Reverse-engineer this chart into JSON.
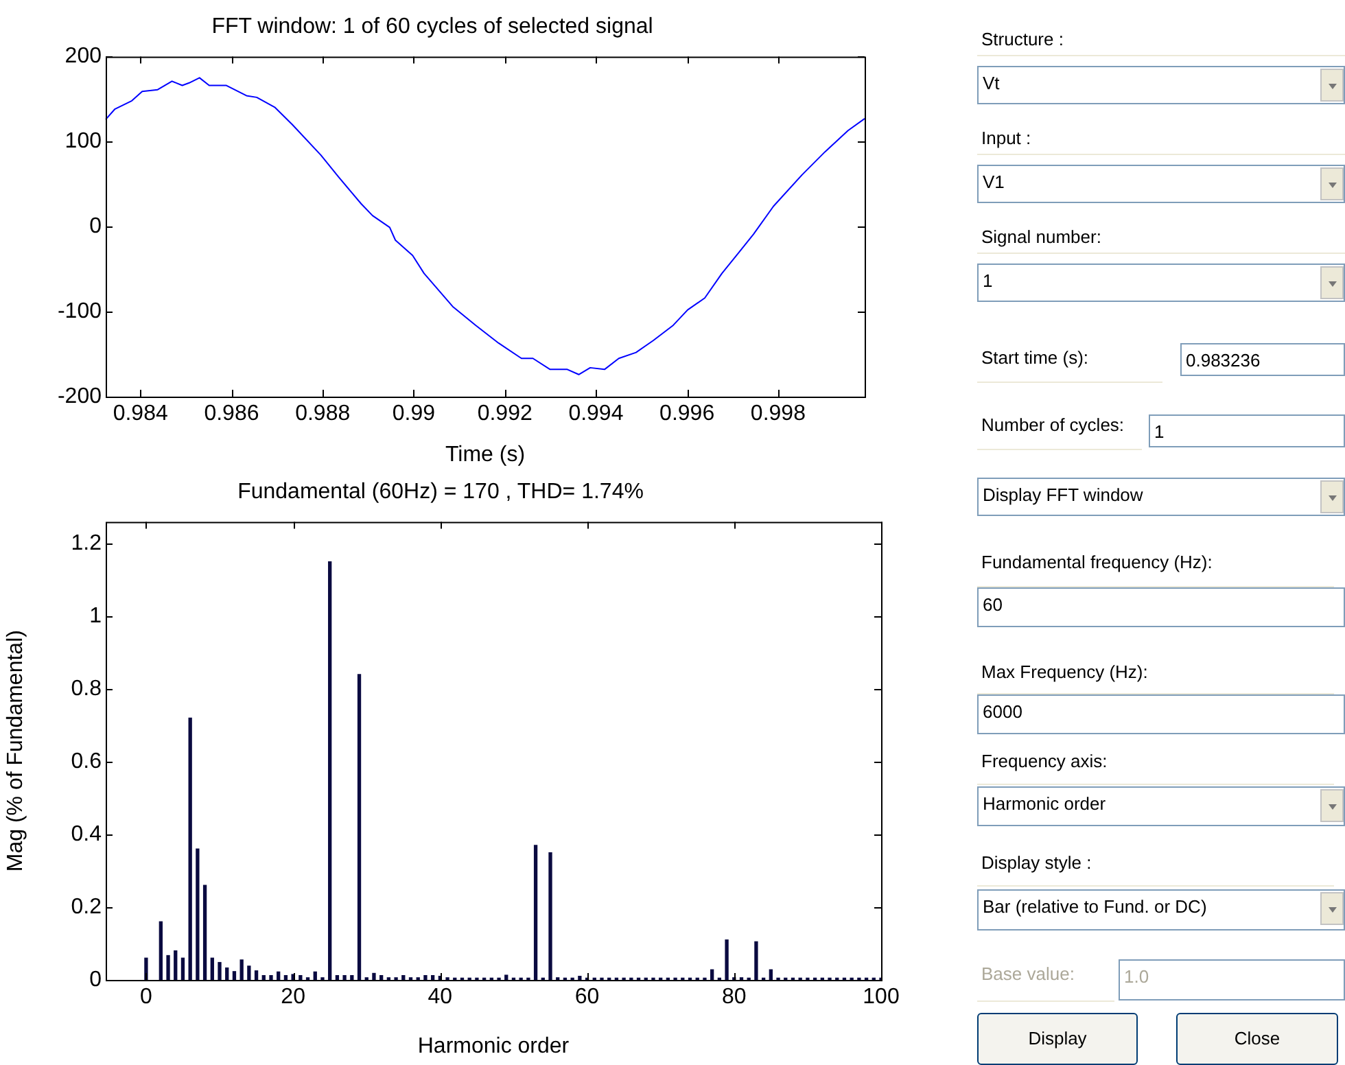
{
  "chart_data": [
    {
      "type": "line",
      "title": "FFT window: 1 of 60 cycles of selected signal",
      "xlabel": "Time (s)",
      "x": [
        0.983236,
        0.983434,
        0.983811,
        0.984038,
        0.984377,
        0.984692,
        0.984918,
        0.985069,
        0.985296,
        0.985509,
        0.985887,
        0.986327,
        0.986553,
        0.986956,
        0.987333,
        0.987962,
        0.98834,
        0.988843,
        0.989094,
        0.989472,
        0.989597,
        0.989975,
        0.990226,
        0.990855,
        0.991358,
        0.991862,
        0.992365,
        0.992616,
        0.992994,
        0.993371,
        0.993623,
        0.993874,
        0.994189,
        0.994503,
        0.994881,
        0.995258,
        0.995698,
        0.996013,
        0.99639,
        0.996767,
        0.997145,
        0.997459,
        0.997899,
        0.998528,
        0.999031,
        0.999535,
        0.9999
      ],
      "series": [
        {
          "color": "#0000ff",
          "values": [
            126,
            138,
            148,
            159,
            161,
            171,
            166,
            169,
            175,
            166,
            166,
            154,
            152,
            140,
            120,
            84,
            59,
            27,
            13,
            -1,
            -16,
            -34,
            -55,
            -94,
            -116,
            -137,
            -155,
            -155,
            -168,
            -168,
            -174,
            -166,
            -168,
            -155,
            -148,
            -134,
            -116,
            -98,
            -84,
            -55,
            -30,
            -9,
            24,
            61,
            88,
            113,
            127
          ]
        }
      ],
      "xlim": [
        0.983236,
        0.9999
      ],
      "xticks": [
        0.984,
        0.986,
        0.988,
        0.99,
        0.992,
        0.994,
        0.996,
        0.998
      ],
      "ylim": [
        -200,
        200
      ],
      "yticks": [
        -200,
        -100,
        0,
        100,
        200
      ],
      "grid": false,
      "legend": false,
      "marker": "none",
      "line_style": "solid"
    },
    {
      "type": "bar",
      "title": "Fundamental (60Hz) = 170 , THD= 1.74%",
      "xlabel": "Harmonic order",
      "ylabel": "Mag (% of Fundamental)",
      "x": [
        0,
        1,
        2,
        3,
        4,
        5,
        6,
        7,
        8,
        9,
        10,
        11,
        12,
        13,
        14,
        15,
        16,
        17,
        18,
        19,
        20,
        21,
        22,
        23,
        24,
        25,
        26,
        27,
        28,
        29,
        30,
        31,
        32,
        33,
        34,
        35,
        36,
        37,
        38,
        39,
        40,
        41,
        42,
        43,
        44,
        45,
        46,
        47,
        48,
        49,
        50,
        51,
        52,
        53,
        54,
        55,
        56,
        57,
        58,
        59,
        60,
        61,
        62,
        63,
        64,
        65,
        66,
        67,
        68,
        69,
        70,
        71,
        72,
        73,
        74,
        75,
        76,
        77,
        78,
        79,
        80,
        81,
        82,
        83,
        84,
        85,
        86,
        87,
        88,
        89,
        90,
        91,
        92,
        93,
        94,
        95,
        96,
        97,
        98,
        99,
        100
      ],
      "values": [
        0.06,
        null,
        0.16,
        0.067,
        0.08,
        0.06,
        0.72,
        0.36,
        0.26,
        0.06,
        0.048,
        0.033,
        0.023,
        0.055,
        0.038,
        0.025,
        0.012,
        0.012,
        0.022,
        0.012,
        0.015,
        0.012,
        0.006,
        0.022,
        0.006,
        1.15,
        0.012,
        0.012,
        0.012,
        0.84,
        0.006,
        0.018,
        0.012,
        0.006,
        0.006,
        0.012,
        0.006,
        0.006,
        0.012,
        0.012,
        0.01,
        0.006,
        0.005,
        0.005,
        0.005,
        0.005,
        0.005,
        0.005,
        0.005,
        0.013,
        0.005,
        0.005,
        0.005,
        0.37,
        0.005,
        0.35,
        0.006,
        0.005,
        0.005,
        0.01,
        0.005,
        0.005,
        0.005,
        0.005,
        0.005,
        0.005,
        0.005,
        0.005,
        0.005,
        0.005,
        0.005,
        0.005,
        0.005,
        0.005,
        0.005,
        0.005,
        0.005,
        0.028,
        0.005,
        0.11,
        0.006,
        0.006,
        0.005,
        0.105,
        0.005,
        0.028,
        0.005,
        0.005,
        0.005,
        0.005,
        0.005,
        0.005,
        0.005,
        0.005,
        0.005,
        0.005,
        0.005,
        0.005,
        0.005,
        0.005,
        0.005
      ],
      "color": "#0a0a40",
      "xlim": [
        -5.5,
        100
      ],
      "xticks": [
        0,
        20,
        40,
        60,
        80,
        100
      ],
      "ylim": [
        0,
        1.26
      ],
      "yticks": [
        0,
        0.2,
        0.4,
        0.6,
        0.8,
        1,
        1.2
      ],
      "grid": false,
      "legend": false
    },
    {
      "type": "other",
      "annotations": [
        "Structure :",
        "Vt",
        "Input :",
        "V1",
        "Signal number:",
        "1",
        "Start time (s):",
        "0.983236",
        "Number of cycles:",
        "1",
        "Display FFT window",
        "Fundamental frequency (Hz):",
        "60",
        "Max Frequency (Hz):",
        "6000",
        "Frequency axis:",
        "Harmonic order",
        "Display style :",
        "Bar (relative to Fund. or DC)",
        "Base value:",
        "1.0",
        "Display",
        "Close"
      ]
    }
  ]
}
